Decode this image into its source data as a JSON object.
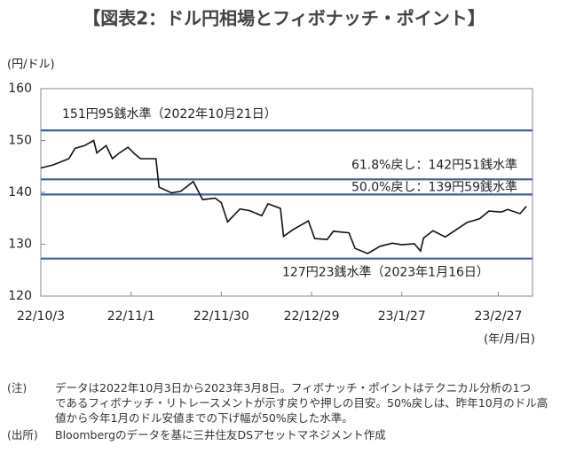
{
  "chart_data": {
    "type": "line",
    "title": "【図表2：ドル円相場とフィボナッチ・ポイント】",
    "y_unit": "(円/ドル)",
    "x_unit": "(年/月/日)",
    "color": "#111111",
    "x": [
      "22/10/3",
      "22/10/7",
      "22/10/12",
      "22/10/14",
      "22/10/17",
      "22/10/20",
      "22/10/21",
      "22/10/24",
      "22/10/26",
      "22/10/28",
      "22/10/31",
      "22/11/2",
      "22/11/4",
      "22/11/9",
      "22/11/10",
      "22/11/14",
      "22/11/17",
      "22/11/21",
      "22/11/24",
      "22/11/28",
      "22/11/30",
      "22/12/2",
      "22/12/6",
      "22/12/9",
      "22/12/13",
      "22/12/15",
      "22/12/19",
      "22/12/20",
      "22/12/23",
      "22/12/28",
      "22/12/30",
      "23/1/3",
      "23/1/5",
      "23/1/10",
      "23/1/12",
      "23/1/16",
      "23/1/18",
      "23/1/20",
      "23/1/24",
      "23/1/27",
      "23/1/31",
      "23/2/2",
      "23/2/3",
      "23/2/6",
      "23/2/10",
      "23/2/14",
      "23/2/17",
      "23/2/21",
      "23/2/24",
      "23/2/28",
      "23/3/2",
      "23/3/6",
      "23/3/8"
    ],
    "values": [
      144.7,
      145.3,
      146.5,
      148.5,
      149.0,
      150.0,
      147.6,
      149.0,
      146.5,
      147.5,
      148.7,
      147.5,
      146.5,
      146.5,
      141.0,
      139.9,
      140.2,
      142.1,
      138.6,
      138.9,
      138.0,
      134.3,
      136.8,
      136.5,
      135.5,
      137.8,
      136.9,
      131.5,
      132.8,
      134.5,
      131.1,
      130.9,
      132.5,
      132.2,
      129.2,
      128.2,
      128.9,
      129.6,
      130.2,
      129.9,
      130.1,
      128.7,
      131.2,
      132.6,
      131.4,
      133.0,
      134.2,
      134.9,
      136.4,
      136.2,
      136.7,
      135.9,
      137.3
    ],
    "xlim": [
      "22/10/3",
      "23/3/10"
    ],
    "xticks": [
      "22/10/3",
      "22/11/1",
      "22/11/30",
      "22/12/29",
      "23/1/27",
      "23/2/27"
    ],
    "ylim": [
      120,
      160
    ],
    "yticks": [
      120,
      130,
      140,
      150,
      160
    ],
    "reference_lines": [
      {
        "value": 151.95,
        "label": "151円95銭水準（2022年10月21日）",
        "color": "#3f5f9f"
      },
      {
        "value": 142.51,
        "label": "61.8%戻し：142円51銭水準",
        "color": "#3f5f9f"
      },
      {
        "value": 139.59,
        "label": "50.0%戻し：139円59銭水準",
        "color": "#3f5f9f"
      },
      {
        "value": 127.23,
        "label": "127円23銭水準（2023年1月16日）",
        "color": "#3f5f9f"
      }
    ]
  },
  "notes": {
    "note_tag": "(注)",
    "note_lines": [
      "データは2022年10月3日から2023年3月8日。フィボナッチ・ポイントはテクニカル分析の1つ",
      "であるフィボナッチ・リトレースメントが示す戻りや押しの目安。50%戻しは、昨年10月のドル高",
      "値から今年1月のドル安値までの下げ幅が50%戻した水準。"
    ],
    "source_tag": "(出所)",
    "source": "Bloombergのデータを基に三井住友DSアセットマネジメント作成"
  }
}
